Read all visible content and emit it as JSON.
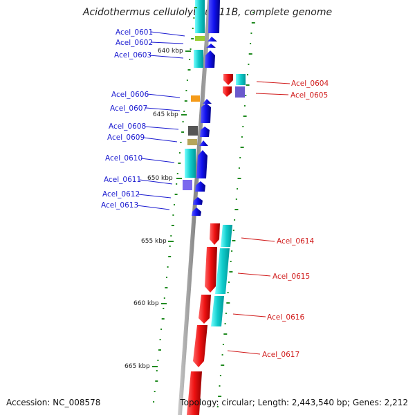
{
  "title": "Acidothermus cellulolyticus 11B, complete genome",
  "footer": {
    "accession": "Accession: NC_008578",
    "topology": "Topology: circular; Length: 2,443,540 bp; Genes: 2,212"
  },
  "kbp_labels": [
    "640 kbp",
    "645 kbp",
    "650 kbp",
    "655 kbp",
    "660 kbp",
    "665 kbp"
  ],
  "genes_left": [
    "Acel_0601",
    "Acel_0602",
    "Acel_0603",
    "Acel_0606",
    "Acel_0607",
    "Acel_0608",
    "Acel_0609",
    "Acel_0610",
    "Acel_0611",
    "Acel_0612",
    "Acel_0613"
  ],
  "genes_right": [
    "Acel_0604",
    "Acel_0605",
    "Acel_0614",
    "Acel_0615",
    "Acel_0616",
    "Acel_0617"
  ],
  "colors": {
    "forward_strand": "#1010e8",
    "reverse_strand": "#e81010",
    "cds": "#10d8d8",
    "left_label": "#1a1ad0",
    "right_label": "#d01a1a",
    "gc_ticks": "#1f8a1f"
  }
}
